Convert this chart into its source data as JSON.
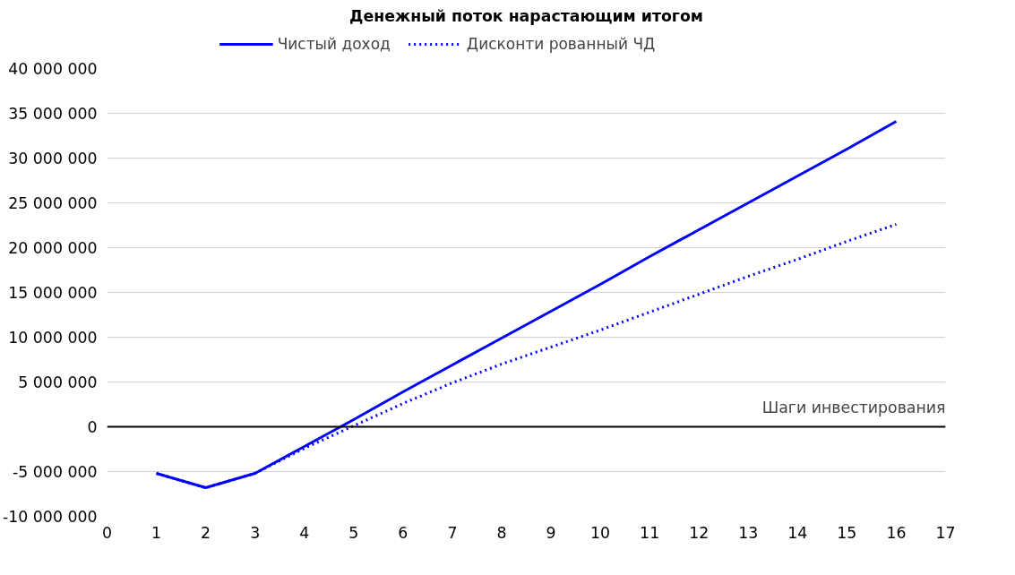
{
  "chart_data": {
    "type": "line",
    "title": "Денежный поток нарастающим итогом",
    "xlabel": "Шаги инвестирования",
    "x": [
      1,
      2,
      3,
      4,
      5,
      6,
      7,
      8,
      9,
      10,
      11,
      12,
      13,
      14,
      15,
      16
    ],
    "series": [
      {
        "name": "Чистый доход",
        "color": "#0000ff",
        "line_style": "solid",
        "values": [
          -5200000,
          -6800000,
          -5200000,
          -2200000,
          800000,
          3900000,
          6900000,
          9900000,
          12900000,
          15900000,
          19000000,
          22000000,
          25000000,
          28000000,
          31000000,
          34100000
        ]
      },
      {
        "name": "Дисконти рованный ЧД",
        "color": "#0000ff",
        "line_style": "dotted",
        "values": [
          -5200000,
          -6800000,
          -5200000,
          -2400000,
          100000,
          2600000,
          4900000,
          7000000,
          8900000,
          10800000,
          12800000,
          14800000,
          16800000,
          18700000,
          20700000,
          22600000
        ]
      }
    ],
    "xlim": [
      0,
      17
    ],
    "xticks": [
      0,
      1,
      2,
      3,
      4,
      5,
      6,
      7,
      8,
      9,
      10,
      11,
      12,
      13,
      14,
      15,
      16,
      17
    ],
    "ylim": [
      -10000000,
      40000000
    ],
    "yticks": [
      {
        "value": -10000000,
        "label": "-10 000 000"
      },
      {
        "value": -5000000,
        "label": "-5 000 000"
      },
      {
        "value": 0,
        "label": "0"
      },
      {
        "value": 5000000,
        "label": "5 000 000"
      },
      {
        "value": 10000000,
        "label": "10 000 000"
      },
      {
        "value": 15000000,
        "label": "15 000 000"
      },
      {
        "value": 20000000,
        "label": "20 000 000"
      },
      {
        "value": 25000000,
        "label": "25 000 000"
      },
      {
        "value": 30000000,
        "label": "30 000 000"
      },
      {
        "value": 35000000,
        "label": "35 000 000"
      },
      {
        "value": 40000000,
        "label": "40 000 000"
      }
    ],
    "grid": "y",
    "legend": "top",
    "marker": "none"
  }
}
